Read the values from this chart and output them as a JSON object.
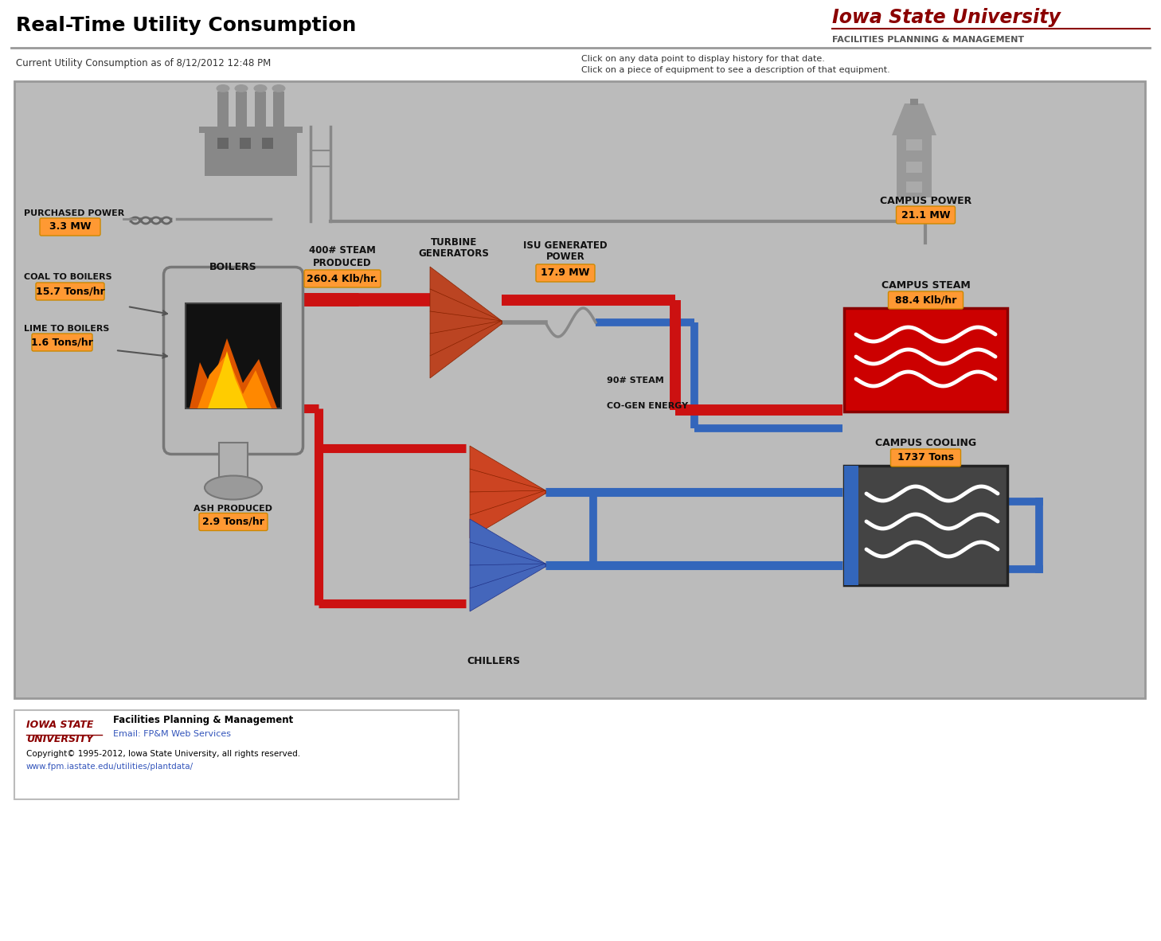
{
  "title": "Real-Time Utility Consumption",
  "isu_title": "Iowa State University",
  "isu_subtitle": "FACILITIES PLANNING & MANAGEMENT",
  "subtitle_left": "Current Utility Consumption as of 8/12/2012 12:48 PM",
  "subtitle_right_1": "Click on any data point to display history for that date.",
  "subtitle_right_2": "Click on a piece of equipment to see a description of that equipment.",
  "bg_color": "#bbbbbb",
  "outer_bg": "#ffffff",
  "labels": {
    "purchased_power": "PURCHASED POWER",
    "purchased_power_val": "3.3 MW",
    "coal_to_boilers": "COAL TO BOILERS",
    "coal_to_boilers_val": "15.7 Tons/hr",
    "lime_to_boilers": "LIME TO BOILERS",
    "lime_to_boilers_val": "1.6 Tons/hr",
    "boilers": "BOILERS",
    "steam_produced_1": "400# STEAM",
    "steam_produced_2": "PRODUCED",
    "steam_produced_val": "260.4 Klb/hr.",
    "turbine_gen_1": "TURBINE",
    "turbine_gen_2": "GENERATORS",
    "isu_gen_power_1": "ISU GENERATED",
    "isu_gen_power_2": "POWER",
    "isu_gen_power_val": "17.9 MW",
    "ash_produced": "ASH PRODUCED",
    "ash_produced_val": "2.9 Tons/hr",
    "campus_power": "CAMPUS POWER",
    "campus_power_val": "21.1 MW",
    "campus_steam": "CAMPUS STEAM",
    "campus_steam_val": "88.4 Klb/hr",
    "so_steam": "90# STEAM",
    "co_gen_energy": "CO-GEN ENERGY",
    "chillers": "CHILLERS",
    "campus_cooling": "CAMPUS COOLING",
    "campus_cooling_val": "1737 Tons"
  },
  "val_box_color": "#ff9933",
  "red_color": "#cc1111",
  "blue_color": "#3366bb",
  "gray_color": "#888888",
  "isu_red": "#8b0000",
  "footer_link_color": "#3355bb",
  "label_color": "#111111"
}
